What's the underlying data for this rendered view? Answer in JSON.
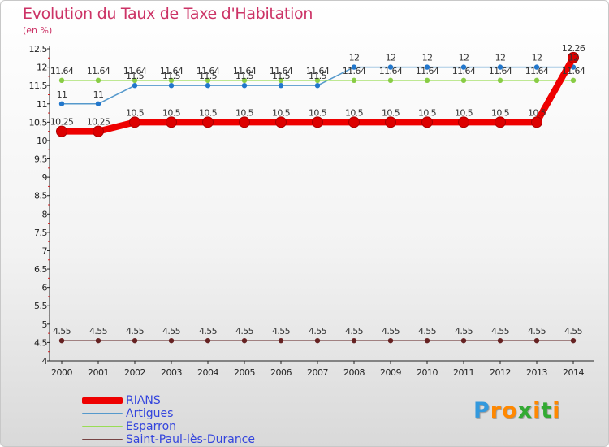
{
  "chart_data": {
    "type": "line",
    "title": "Evolution du Taux de Taxe d'Habitation",
    "subtitle": "(en %)",
    "x": [
      "2000",
      "2001",
      "2002",
      "2003",
      "2004",
      "2005",
      "2006",
      "2007",
      "2008",
      "2009",
      "2010",
      "2011",
      "2012",
      "2013",
      "2014"
    ],
    "ylim": [
      4,
      12.5
    ],
    "yticks": [
      4,
      4.5,
      5,
      5.5,
      6,
      6.5,
      7,
      7.5,
      8,
      8.5,
      9,
      9.5,
      10,
      10.5,
      11,
      11.5,
      12,
      12.5
    ],
    "grid": false,
    "legend_position": "bottom-left",
    "series": [
      {
        "name": "RIANS",
        "color": "#ee0000",
        "emphasis": true,
        "values": [
          10.25,
          10.25,
          10.5,
          10.5,
          10.5,
          10.5,
          10.5,
          10.5,
          10.5,
          10.5,
          10.5,
          10.5,
          10.5,
          10.5,
          12.26
        ]
      },
      {
        "name": "Artigues",
        "color": "#5599cc",
        "marker_color": "#2277cc",
        "emphasis": false,
        "values": [
          11,
          11,
          11.5,
          11.5,
          11.5,
          11.5,
          11.5,
          11.5,
          12,
          12,
          12,
          12,
          12,
          12,
          12
        ]
      },
      {
        "name": "Esparron",
        "color": "#99dd55",
        "marker_color": "#88cc44",
        "emphasis": false,
        "values": [
          11.64,
          11.64,
          11.64,
          11.64,
          11.64,
          11.64,
          11.64,
          11.64,
          11.64,
          11.64,
          11.64,
          11.64,
          11.64,
          11.64,
          11.64
        ]
      },
      {
        "name": "Saint-Paul-lès-Durance",
        "color": "#774444",
        "marker_color": "#662222",
        "emphasis": false,
        "values": [
          4.55,
          4.55,
          4.55,
          4.55,
          4.55,
          4.55,
          4.55,
          4.55,
          4.55,
          4.55,
          4.55,
          4.55,
          4.55,
          4.55,
          4.55
        ]
      }
    ],
    "data_labels": {
      "RIANS": [
        "10.25",
        "10.25",
        "10.5",
        "10.5",
        "10.5",
        "10.5",
        "10.5",
        "10.5",
        "10.5",
        "10.5",
        "10.5",
        "10.5",
        "10.5",
        "10.5",
        "12.26"
      ],
      "Artigues": [
        "11",
        "11",
        "11.5",
        "11.5",
        "11.5",
        "11.5",
        "11.5",
        "11.5",
        "12",
        "12",
        "12",
        "12",
        "12",
        "12",
        "12"
      ],
      "Esparron": [
        "11.64",
        "11.64",
        "11.64",
        "11.64",
        "11.64",
        "11.64",
        "11.64",
        "11.64",
        "11.64",
        "11.64",
        "11.64",
        "11.64",
        "11.64",
        "11.64",
        "11.64"
      ],
      "Saint-Paul-lès-Durance": [
        "4.55",
        "4.55",
        "4.55",
        "4.55",
        "4.55",
        "4.55",
        "4.55",
        "4.55",
        "4.55",
        "4.55",
        "4.55",
        "4.55",
        "4.55",
        "4.55",
        "4.55"
      ]
    }
  },
  "logo": {
    "letters": [
      "P",
      "r",
      "o",
      "x",
      "i",
      "t",
      "i"
    ],
    "colors": [
      "#3399dd",
      "#ff8800",
      "#ff8800",
      "#33aa33",
      "#ff8800",
      "#33aa33",
      "#ff8800"
    ]
  }
}
